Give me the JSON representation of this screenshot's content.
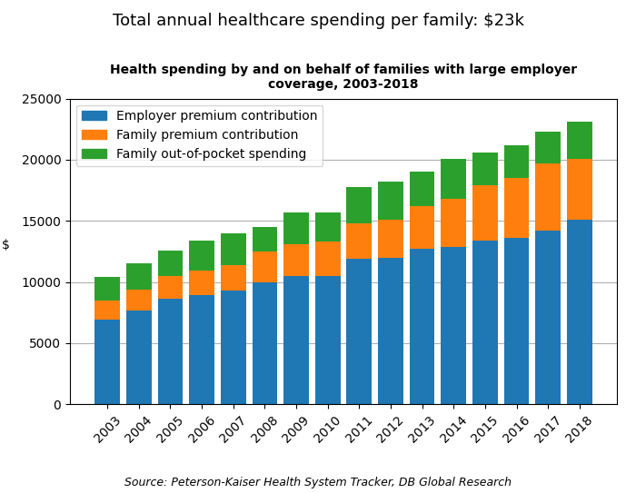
{
  "chart_data": {
    "type": "bar",
    "title": "Total annual healthcare spending per family: $23k",
    "subtitle": "Health spending by and on behalf of families with large employer\ncoverage, 2003-2018",
    "y_label": "$",
    "source": "Source: Peterson-Kaiser Health System Tracker, DB Global Research",
    "categories": [
      "2003",
      "2004",
      "2005",
      "2006",
      "2007",
      "2008",
      "2009",
      "2010",
      "2011",
      "2012",
      "2013",
      "2014",
      "2015",
      "2016",
      "2017",
      "2018"
    ],
    "series": [
      {
        "name": "Employer premium contribution",
        "values": [
          6900,
          7700,
          8600,
          8900,
          9300,
          10000,
          10500,
          10500,
          11900,
          12000,
          12700,
          12900,
          13400,
          13600,
          14200,
          15100
        ]
      },
      {
        "name": "Family premium contribution",
        "values": [
          1600,
          1700,
          1900,
          2000,
          2100,
          2500,
          2600,
          2800,
          2900,
          3100,
          3500,
          3900,
          4500,
          4900,
          5500,
          5000
        ]
      },
      {
        "name": "Family out-of-pocket spending",
        "values": [
          1900,
          2100,
          2100,
          2500,
          2600,
          2000,
          2600,
          2400,
          3000,
          3100,
          2800,
          3300,
          2700,
          2700,
          2600,
          3000
        ]
      }
    ],
    "stacked": true,
    "ylim": [
      0,
      25000
    ],
    "yticks": [
      0,
      5000,
      10000,
      15000,
      20000,
      25000
    ],
    "grid": true,
    "legend": "upper left"
  }
}
